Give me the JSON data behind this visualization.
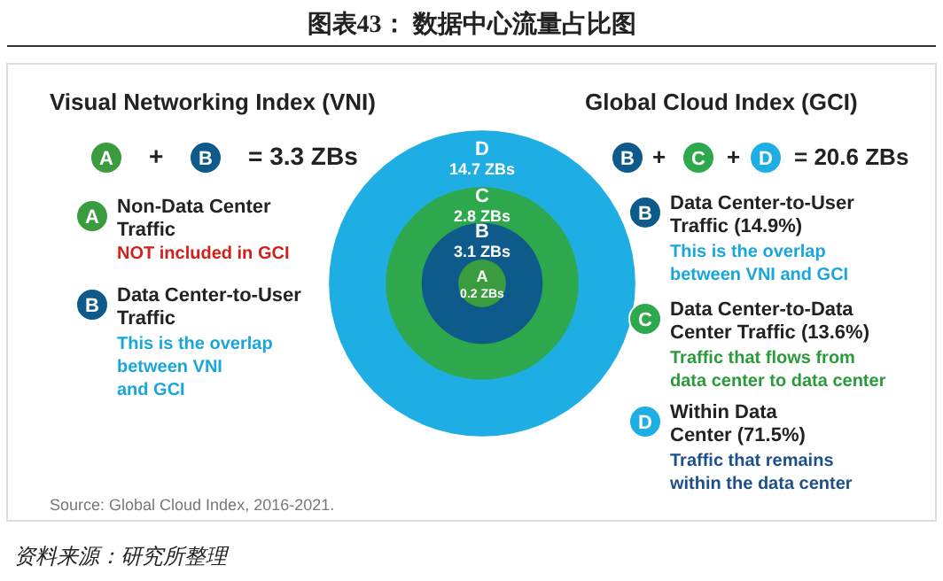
{
  "chart_data": {
    "type": "other",
    "title": "图表43：  数据中心流量占比图",
    "categories": [
      "A",
      "B",
      "C",
      "D"
    ],
    "values": [
      0.2,
      3.1,
      2.8,
      14.7
    ],
    "value_labels": [
      "0.2 ZBs",
      "3.1 ZBs",
      "2.8 ZBs",
      "14.7 ZBs"
    ],
    "colors": [
      "#3a9c3e",
      "#0e5a8a",
      "#2ea84c",
      "#1eaee4"
    ],
    "annotations": [
      "Visual Networking Index (VNI)",
      "Global Cloud Index (GCI)",
      "+",
      "= 3.3 ZBs",
      "+",
      "+",
      "= 20.6 ZBs",
      "Non-Data Center",
      "Traffic",
      "NOT included in GCI",
      "Data Center-to-User",
      "Traffic",
      "This is the overlap",
      "between VNI",
      "and GCI",
      "Data Center-to-User",
      "Traffic (14.9%)",
      "This is the overlap",
      "between VNI and GCI",
      "Data Center-to-Data",
      "Center Traffic (13.6%)",
      "Traffic that flows from",
      "data center to data center",
      "Within Data",
      "Center (71.5%)",
      "Traffic that remains",
      "within the data center",
      "Source: Global Cloud Index, 2016-2021.",
      "资料来源：研究所整理"
    ]
  }
}
